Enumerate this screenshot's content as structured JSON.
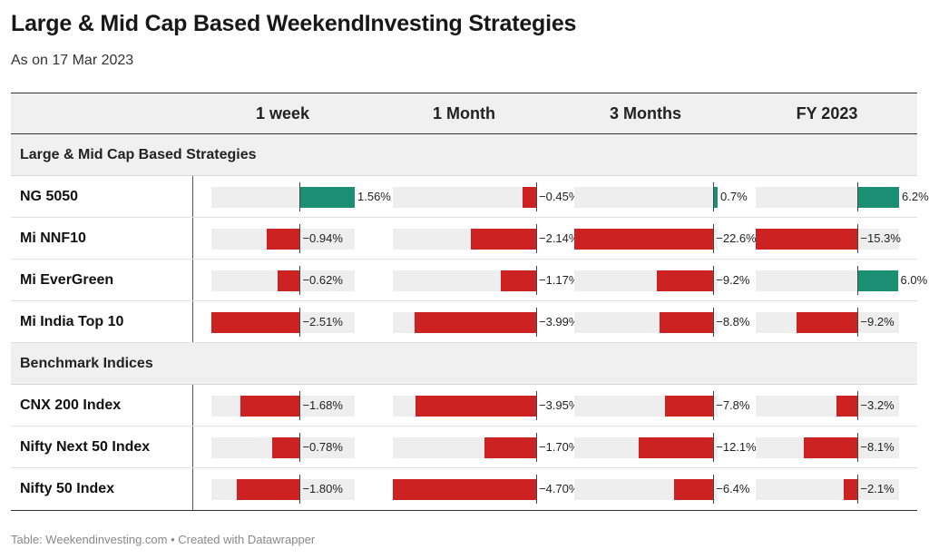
{
  "title": "Large & Mid Cap Based WeekendInvesting Strategies",
  "subtitle": "As on 17 Mar 2023",
  "footer": "Table: Weekendinvesting.com • Created with Datawrapper",
  "colors": {
    "positive": "#1a8f73",
    "negative": "#cc2222",
    "track": "#eeeeee",
    "header_bg": "#f0f0f0"
  },
  "chart_data": {
    "type": "table",
    "columns": [
      "1 week",
      "1 Month",
      "3 Months",
      "FY 2023"
    ],
    "column_ranges": [
      [
        -2.51,
        1.56
      ],
      [
        -4.7,
        0.0
      ],
      [
        -22.6,
        0.7
      ],
      [
        -15.3,
        6.2
      ]
    ],
    "groups": [
      {
        "name": "Large & Mid Cap Based Strategies",
        "rows": [
          {
            "name": "NG 5050",
            "values": [
              1.56,
              -0.45,
              0.7,
              6.2
            ],
            "labels": [
              "1.56%",
              "−0.45%",
              "0.7%",
              "6.2%"
            ]
          },
          {
            "name": "Mi NNF10",
            "values": [
              -0.94,
              -2.14,
              -22.6,
              -15.3
            ],
            "labels": [
              "−0.94%",
              "−2.14%",
              "−22.6%",
              "−15.3%"
            ]
          },
          {
            "name": "Mi EverGreen",
            "values": [
              -0.62,
              -1.17,
              -9.2,
              6.0
            ],
            "labels": [
              "−0.62%",
              "−1.17%",
              "−9.2%",
              "6.0%"
            ]
          },
          {
            "name": "Mi India Top 10",
            "values": [
              -2.51,
              -3.99,
              -8.8,
              -9.2
            ],
            "labels": [
              "−2.51%",
              "−3.99%",
              "−8.8%",
              "−9.2%"
            ]
          }
        ]
      },
      {
        "name": "Benchmark Indices",
        "rows": [
          {
            "name": "CNX 200 Index",
            "values": [
              -1.68,
              -3.95,
              -7.8,
              -3.2
            ],
            "labels": [
              "−1.68%",
              "−3.95%",
              "−7.8%",
              "−3.2%"
            ]
          },
          {
            "name": "Nifty Next 50 Index",
            "values": [
              -0.78,
              -1.7,
              -12.1,
              -8.1
            ],
            "labels": [
              "−0.78%",
              "−1.70%",
              "−12.1%",
              "−8.1%"
            ]
          },
          {
            "name": "Nifty 50 Index",
            "values": [
              -1.8,
              -4.7,
              -6.4,
              -2.1
            ],
            "labels": [
              "−1.80%",
              "−4.70%",
              "−6.4%",
              "−2.1%"
            ]
          }
        ]
      }
    ]
  }
}
